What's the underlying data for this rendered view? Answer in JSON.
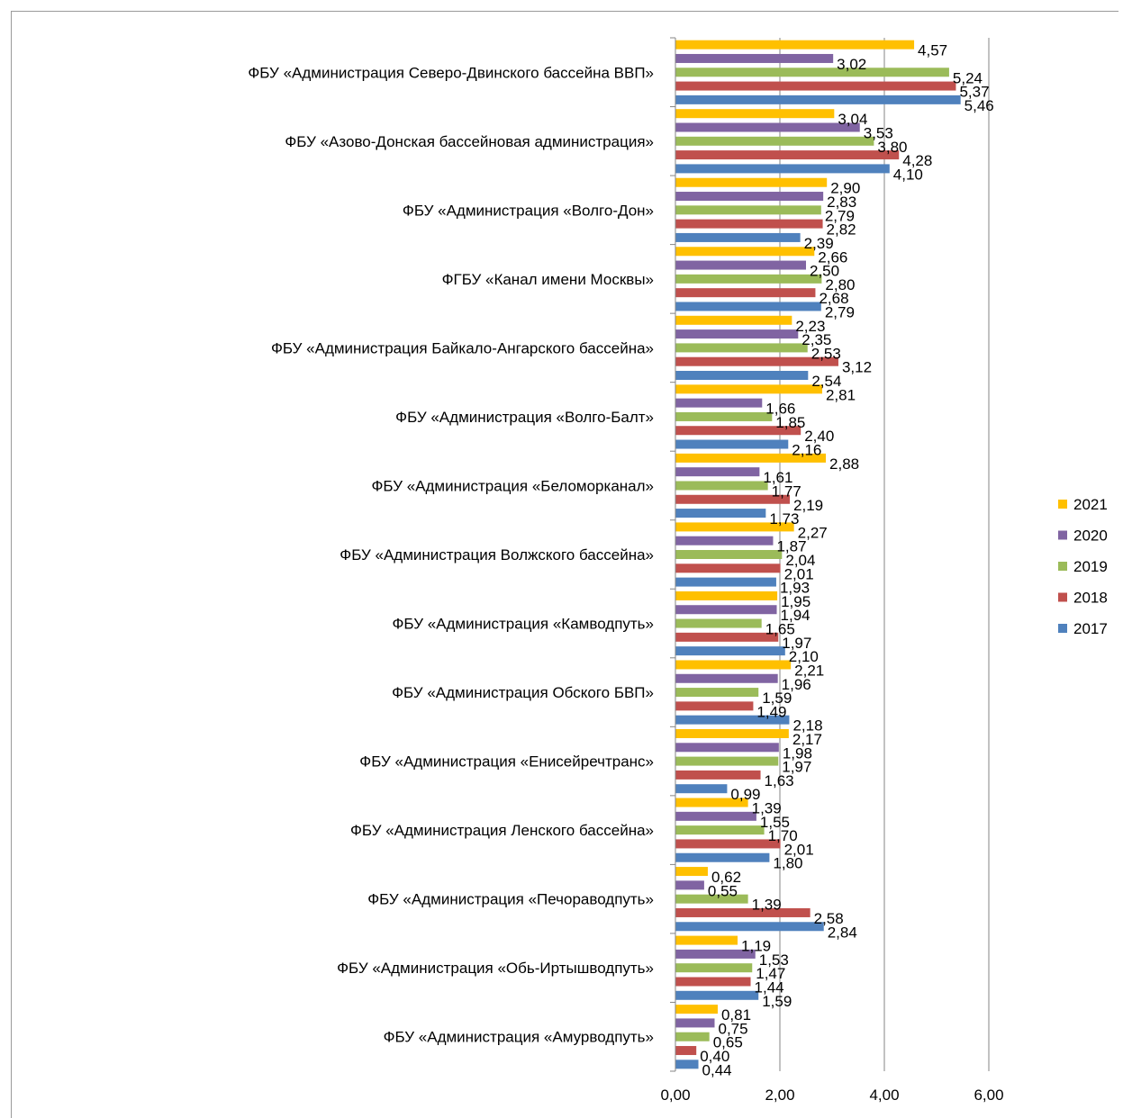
{
  "chart_data": {
    "type": "bar",
    "orientation": "horizontal",
    "categories": [
      "ФБУ «Администрация Северо-Двинского бассейна ВВП»",
      "ФБУ «Азово-Донская бассейновая администрация»",
      "ФБУ «Администрация «Волго-Дон»",
      "ФГБУ «Канал имени Москвы»",
      "ФБУ «Администрация Байкало-Ангарского бассейна»",
      "ФБУ «Администрация «Волго-Балт»",
      "ФБУ «Администрация «Беломорканал»",
      "ФБУ «Администрация Волжского бассейна»",
      "ФБУ «Администрация «Камводпуть»",
      "ФБУ «Администрация Обского БВП»",
      "ФБУ «Администрация «Енисейречтранс»",
      "ФБУ «Администрация Ленского бассейна»",
      "ФБУ «Администрация «Печораводпуть»",
      "ФБУ «Администрация «Обь-Иртышводпуть»",
      "ФБУ «Администрация «Амурводпуть»"
    ],
    "series": [
      {
        "name": "2021",
        "color": "#FFC000",
        "values": [
          4.57,
          3.04,
          2.9,
          2.66,
          2.23,
          2.81,
          2.88,
          2.27,
          1.95,
          2.21,
          2.17,
          1.39,
          0.62,
          1.19,
          0.81
        ],
        "labels": [
          "4,57",
          "3,04",
          "2,90",
          "2,66",
          "2,23",
          "2,81",
          "2,88",
          "2,27",
          "1,95",
          "2,21",
          "2,17",
          "1,39",
          "0,62",
          "1,19",
          "0,81"
        ]
      },
      {
        "name": "2020",
        "color": "#8064A2",
        "values": [
          3.02,
          3.53,
          2.83,
          2.5,
          2.35,
          1.66,
          1.61,
          1.87,
          1.94,
          1.96,
          1.98,
          1.55,
          0.55,
          1.53,
          0.75
        ],
        "labels": [
          "3,02",
          "3,53",
          "2,83",
          "2,50",
          "2,35",
          "1,66",
          "1,61",
          "1,87",
          "1,94",
          "1,96",
          "1,98",
          "1,55",
          "0,55",
          "1,53",
          "0,75"
        ]
      },
      {
        "name": "2019",
        "color": "#9BBB59",
        "values": [
          5.24,
          3.8,
          2.79,
          2.8,
          2.53,
          1.85,
          1.77,
          2.04,
          1.65,
          1.59,
          1.97,
          1.7,
          1.39,
          1.47,
          0.65
        ],
        "labels": [
          "5,24",
          "3,80",
          "2,79",
          "2,80",
          "2,53",
          "1,85",
          "1,77",
          "2,04",
          "1,65",
          "1,59",
          "1,97",
          "1,70",
          "1,39",
          "1,47",
          "0,65"
        ]
      },
      {
        "name": "2018",
        "color": "#C0504D",
        "values": [
          5.37,
          4.28,
          2.82,
          2.68,
          3.12,
          2.4,
          2.19,
          2.01,
          1.97,
          1.49,
          1.63,
          2.01,
          2.58,
          1.44,
          0.4
        ],
        "labels": [
          "5,37",
          "4,28",
          "2,82",
          "2,68",
          "3,12",
          "2,40",
          "2,19",
          "2,01",
          "1,97",
          "1,49",
          "1,63",
          "2,01",
          "2,58",
          "1,44",
          "0,40"
        ]
      },
      {
        "name": "2017",
        "color": "#4F81BD",
        "values": [
          5.46,
          4.1,
          2.39,
          2.79,
          2.54,
          2.16,
          1.73,
          1.93,
          2.1,
          2.18,
          0.99,
          1.8,
          2.84,
          1.59,
          0.44
        ],
        "labels": [
          "5,46",
          "4,10",
          "2,39",
          "2,79",
          "2,54",
          "2,16",
          "1,73",
          "1,93",
          "2,10",
          "2,18",
          "0,99",
          "1,80",
          "2,84",
          "1,59",
          "0,44"
        ]
      }
    ],
    "x_ticks": [
      "0,00",
      "2,00",
      "4,00",
      "6,00"
    ],
    "x_tick_values": [
      0,
      2,
      4,
      6
    ],
    "xlim": [
      0,
      6
    ],
    "grid": true,
    "legend_position": "right",
    "legend_order": [
      "2021",
      "2020",
      "2019",
      "2018",
      "2017"
    ]
  }
}
